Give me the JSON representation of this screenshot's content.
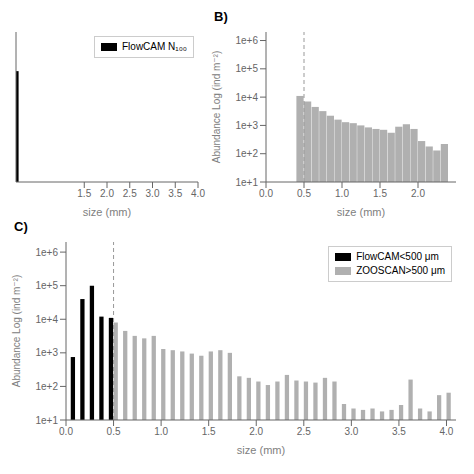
{
  "chart_data": [
    {
      "type": "bar",
      "xlabel": "size (mm)",
      "x": [
        0.025
      ],
      "series": [
        {
          "name": "FlowCAM N₁₀₀",
          "color": "#000000",
          "values": [
            0.85
          ]
        }
      ],
      "xlim": [
        0.0,
        4.0
      ],
      "xticks": [
        1.5,
        {
          "value": 2.0,
          "label": "2.0"
        },
        2.5,
        {
          "value": 3.0,
          "label": "3.0"
        },
        3.5,
        {
          "value": 4.0,
          "label": "4.0"
        }
      ],
      "ylim": [
        0,
        1.15
      ],
      "tick_labels": "x",
      "legend": "upper right"
    },
    {
      "type": "bar",
      "title": "B)",
      "xlabel": "size (mm)",
      "ylabel": "Abundance Log (ind m⁻²)",
      "log": "y",
      "x": [
        0.45,
        0.55,
        0.65,
        0.75,
        0.85,
        0.95,
        1.05,
        1.15,
        1.25,
        1.35,
        1.45,
        1.55,
        1.65,
        1.75,
        1.85,
        1.95,
        2.05,
        2.15,
        2.25,
        2.35
      ],
      "values": [
        11000,
        7000,
        4500,
        3200,
        2200,
        1600,
        1300,
        1200,
        1000,
        850,
        750,
        700,
        550,
        900,
        1100,
        750,
        280,
        180,
        130,
        220
      ],
      "color": "#b0b0b0",
      "xlim": [
        0.0,
        2.5
      ],
      "xticks": [
        {
          "value": 0.0,
          "label": "0.0"
        },
        0.5,
        {
          "value": 1.0,
          "label": "1.0"
        },
        1.5,
        {
          "value": 2.0,
          "label": "2.0"
        }
      ],
      "ylim": [
        10,
        2000000
      ],
      "yticks": [
        {
          "value": 10,
          "label": "1e+1"
        },
        {
          "value": 100,
          "label": "1e+2"
        },
        {
          "value": 1000,
          "label": "1e+3"
        },
        {
          "value": 10000,
          "label": "1e+4"
        },
        {
          "value": 100000,
          "label": "1e+5"
        },
        {
          "value": 1000000,
          "label": "1e+6"
        }
      ],
      "dashed_line_x": 0.5
    },
    {
      "type": "bar",
      "title": "C)",
      "xlabel": "size (mm)",
      "ylabel": "Abundance Log (ind m⁻²)",
      "log": "y",
      "series": [
        {
          "name": "FlowCAM<500 μm",
          "color": "#000000",
          "x": [
            0.075,
            0.175,
            0.275,
            0.375,
            0.475
          ],
          "values": [
            750,
            40000,
            100000,
            12000,
            11000
          ]
        },
        {
          "name": "ZOOSCAN>500 μm",
          "color": "#b0b0b0",
          "x": [
            0.525,
            0.625,
            0.725,
            0.825,
            0.925,
            1.025,
            1.125,
            1.225,
            1.325,
            1.425,
            1.525,
            1.625,
            1.725,
            1.825,
            1.925,
            2.025,
            2.125,
            2.225,
            2.325,
            2.425,
            2.525,
            2.625,
            2.725,
            2.825,
            2.925,
            3.025,
            3.125,
            3.225,
            3.325,
            3.425,
            3.525,
            3.625,
            3.725,
            3.825,
            3.925,
            4.025
          ],
          "values": [
            8000,
            4500,
            3200,
            2700,
            3200,
            1300,
            1200,
            1100,
            950,
            820,
            1100,
            1200,
            1000,
            200,
            180,
            140,
            110,
            140,
            220,
            150,
            140,
            130,
            180,
            140,
            30,
            22,
            20,
            22,
            18,
            20,
            28,
            160,
            22,
            18,
            55,
            65
          ]
        }
      ],
      "xlim": [
        0.0,
        4.1
      ],
      "xticks": [
        {
          "value": 0.0,
          "label": "0.0"
        },
        0.5,
        {
          "value": 1.0,
          "label": "1.0"
        },
        1.5,
        {
          "value": 2.0,
          "label": "2.0"
        },
        2.5,
        {
          "value": 3.0,
          "label": "3.0"
        },
        3.5,
        {
          "value": 4.0,
          "label": "4.0"
        }
      ],
      "ylim": [
        10,
        2000000
      ],
      "yticks": [
        {
          "value": 10,
          "label": "1e+1"
        },
        {
          "value": 100,
          "label": "1e+2"
        },
        {
          "value": 1000,
          "label": "1e+3"
        },
        {
          "value": 10000,
          "label": "1e+4"
        },
        {
          "value": 100000,
          "label": "1e+5"
        },
        {
          "value": 1000000,
          "label": "1e+6"
        }
      ],
      "legend": "upper right",
      "dashed_line_x": 0.5
    }
  ]
}
